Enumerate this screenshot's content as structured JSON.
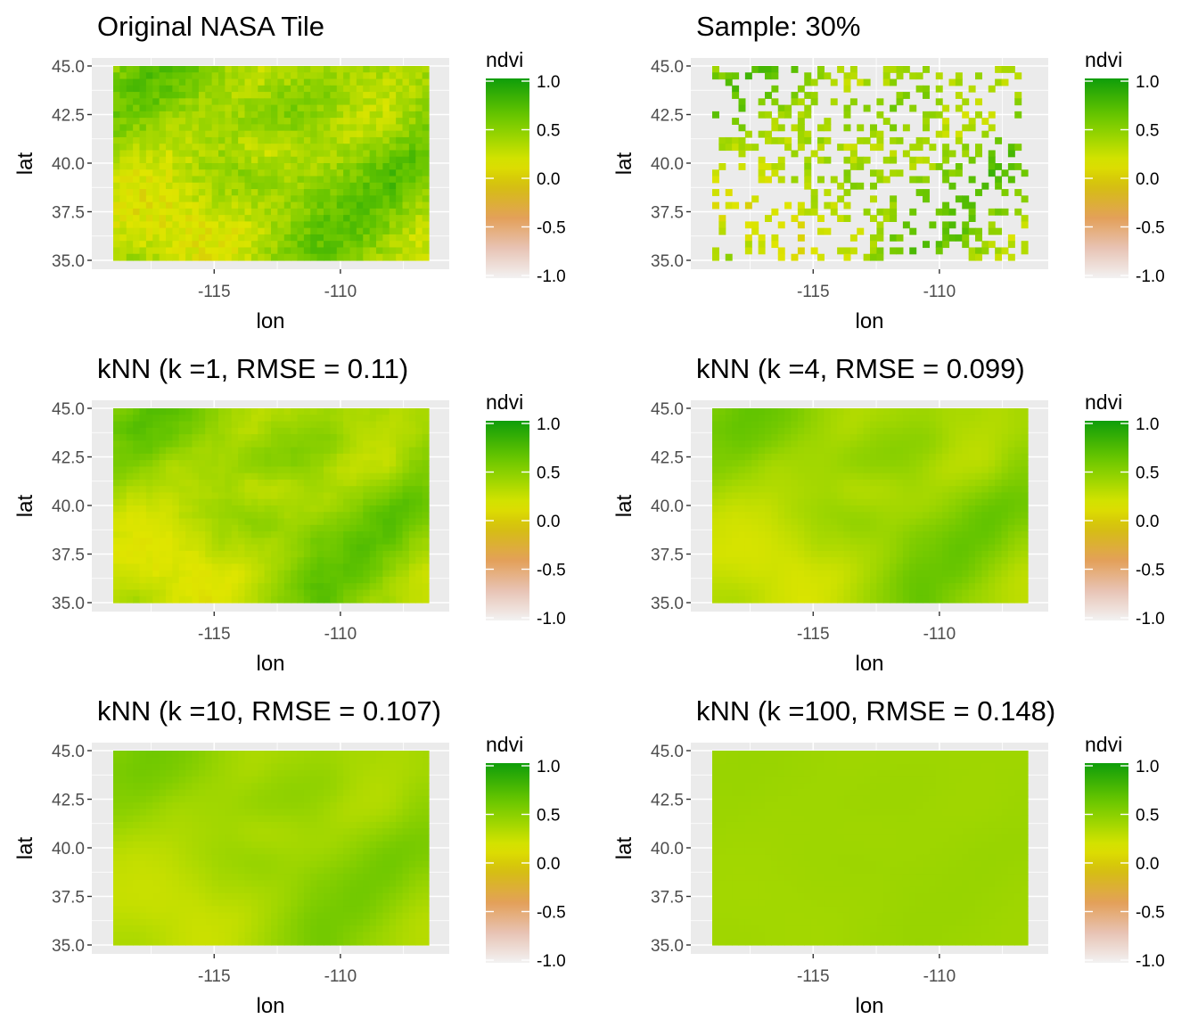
{
  "chart_data": [
    {
      "type": "heatmap",
      "title": "Original NASA Tile",
      "xlabel": "lon",
      "ylabel": "lat",
      "x_ticks": [
        "-115",
        "-110"
      ],
      "y_ticks": [
        "35.0",
        "37.5",
        "40.0",
        "42.5",
        "45.0"
      ],
      "xlim": [
        -119,
        -106.5
      ],
      "ylim": [
        35.0,
        45.0
      ],
      "legend": {
        "title": "ndvi",
        "ticks": [
          "1.0",
          "0.5",
          "0.0",
          "-0.5",
          "-1.0"
        ],
        "placement": "right"
      },
      "render": {
        "mode": "field",
        "smooth": 0.0,
        "blend": 0.0,
        "mask": false
      },
      "grid": true
    },
    {
      "type": "heatmap",
      "title": "Sample: 30%",
      "xlabel": "lon",
      "ylabel": "lat",
      "x_ticks": [
        "-115",
        "-110"
      ],
      "y_ticks": [
        "35.0",
        "37.5",
        "40.0",
        "42.5",
        "45.0"
      ],
      "xlim": [
        -119,
        -106.5
      ],
      "ylim": [
        35.0,
        45.0
      ],
      "legend": {
        "title": "ndvi",
        "ticks": [
          "1.0",
          "0.5",
          "0.0",
          "-0.5",
          "-1.0"
        ],
        "placement": "right"
      },
      "render": {
        "mode": "field",
        "smooth": 0.0,
        "blend": 0.0,
        "mask": true,
        "sample_fraction": 0.3
      },
      "grid": true
    },
    {
      "type": "heatmap",
      "title": "kNN (k =1, RMSE = 0.11)",
      "xlabel": "lon",
      "ylabel": "lat",
      "x_ticks": [
        "-115",
        "-110"
      ],
      "y_ticks": [
        "35.0",
        "37.5",
        "40.0",
        "42.5",
        "45.0"
      ],
      "xlim": [
        -119,
        -106.5
      ],
      "ylim": [
        35.0,
        45.0
      ],
      "legend": {
        "title": "ndvi",
        "ticks": [
          "1.0",
          "0.5",
          "0.0",
          "-0.5",
          "-1.0"
        ],
        "placement": "right"
      },
      "render": {
        "mode": "field",
        "smooth": 0.35,
        "blend": 0.0,
        "mask": false
      },
      "grid": true
    },
    {
      "type": "heatmap",
      "title": "kNN (k =4, RMSE = 0.099)",
      "xlabel": "lon",
      "ylabel": "lat",
      "x_ticks": [
        "-115",
        "-110"
      ],
      "y_ticks": [
        "35.0",
        "37.5",
        "40.0",
        "42.5",
        "45.0"
      ],
      "xlim": [
        -119,
        -106.5
      ],
      "ylim": [
        35.0,
        45.0
      ],
      "legend": {
        "title": "ndvi",
        "ticks": [
          "1.0",
          "0.5",
          "0.0",
          "-0.5",
          "-1.0"
        ],
        "placement": "right"
      },
      "render": {
        "mode": "field",
        "smooth": 0.75,
        "blend": 0.15,
        "mask": false
      },
      "grid": true
    },
    {
      "type": "heatmap",
      "title": "kNN (k =10, RMSE = 0.107)",
      "xlabel": "lon",
      "ylabel": "lat",
      "x_ticks": [
        "-115",
        "-110"
      ],
      "y_ticks": [
        "35.0",
        "37.5",
        "40.0",
        "42.5",
        "45.0"
      ],
      "xlim": [
        -119,
        -106.5
      ],
      "ylim": [
        35.0,
        45.0
      ],
      "legend": {
        "title": "ndvi",
        "ticks": [
          "1.0",
          "0.5",
          "0.0",
          "-0.5",
          "-1.0"
        ],
        "placement": "right"
      },
      "render": {
        "mode": "field",
        "smooth": 1.0,
        "blend": 0.35,
        "mask": false
      },
      "grid": true
    },
    {
      "type": "heatmap",
      "title": "kNN (k =100, RMSE = 0.148)",
      "xlabel": "lon",
      "ylabel": "lat",
      "x_ticks": [
        "-115",
        "-110"
      ],
      "y_ticks": [
        "35.0",
        "37.5",
        "40.0",
        "42.5",
        "45.0"
      ],
      "xlim": [
        -119,
        -106.5
      ],
      "ylim": [
        35.0,
        45.0
      ],
      "legend": {
        "title": "ndvi",
        "ticks": [
          "1.0",
          "0.5",
          "0.0",
          "-0.5",
          "-1.0"
        ],
        "placement": "right"
      },
      "render": {
        "mode": "field",
        "smooth": 1.0,
        "blend": 0.92,
        "mask": false
      },
      "grid": true
    }
  ],
  "colors": {
    "panel_background": "#ebebeb",
    "gridline": "#ffffff",
    "scale": [
      "#f2f2f2",
      "#e8c3b4",
      "#e3a05a",
      "#d4c20a",
      "#dfe500",
      "#9fd600",
      "#63c400",
      "#0f9d0a"
    ]
  }
}
